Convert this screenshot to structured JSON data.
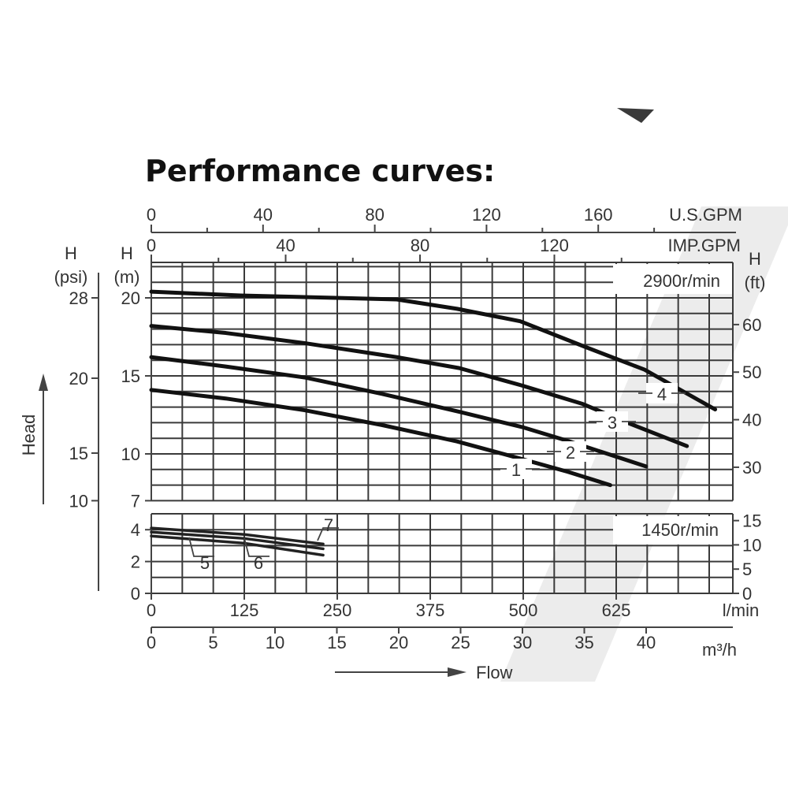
{
  "chart_data": {
    "type": "line",
    "title": "Performance curves:",
    "xlabel": "Flow",
    "ylabel": "Head",
    "x_unit": "l/min",
    "x_unit_label": "l/min",
    "x_secondary_unit_label": "m³/h",
    "x_top_units": [
      "U.S.GPM",
      "IMP.GPM"
    ],
    "y_left_headers": {
      "psi": [
        "H",
        "(psi)"
      ],
      "m": [
        "H",
        "(m)"
      ]
    },
    "y_right_header": [
      "H",
      "(ft)"
    ],
    "xlim": [
      0,
      782
    ],
    "grid": true,
    "x_ticks_lmin": [
      "0",
      "125",
      "250",
      "375",
      "500",
      "625"
    ],
    "x_ticks_m3h": [
      "0",
      "5",
      "10",
      "15",
      "20",
      "25",
      "30",
      "35",
      "40"
    ],
    "x_ticks_usgpm": [
      "0",
      "40",
      "80",
      "120",
      "160"
    ],
    "x_ticks_impgpm": [
      "0",
      "40",
      "80",
      "120"
    ],
    "upper_panel": {
      "speed_label": "2900r/min",
      "ylim_m": [
        7,
        22.27
      ],
      "y_ticks_m": [
        "20",
        "15",
        "10",
        "7"
      ],
      "y_ticks_psi": [
        {
          "label": "28",
          "m": 20
        },
        {
          "label": "20",
          "m": 14.85
        },
        {
          "label": "15",
          "m": 10.05
        },
        {
          "label": "10",
          "m": 7.0
        }
      ],
      "y_ticks_ft": [
        "60",
        "50",
        "40",
        "30"
      ],
      "series": [
        {
          "name": "1",
          "points": [
            [
              0,
              14.1
            ],
            [
              100,
              13.55
            ],
            [
              206,
              12.8
            ],
            [
              310,
              11.85
            ],
            [
              411,
              10.8
            ],
            [
              496,
              9.7
            ],
            [
              560,
              8.85
            ],
            [
              617,
              8.0
            ]
          ]
        },
        {
          "name": "2",
          "points": [
            [
              0,
              16.2
            ],
            [
              100,
              15.6
            ],
            [
              206,
              14.9
            ],
            [
              310,
              13.85
            ],
            [
              414,
              12.7
            ],
            [
              500,
              11.7
            ],
            [
              562,
              10.8
            ],
            [
              665,
              9.2
            ]
          ]
        },
        {
          "name": "3",
          "points": [
            [
              0,
              18.2
            ],
            [
              100,
              17.75
            ],
            [
              206,
              17.1
            ],
            [
              330,
              16.2
            ],
            [
              414,
              15.5
            ],
            [
              497,
              14.4
            ],
            [
              580,
              13.2
            ],
            [
              640,
              12.0
            ],
            [
              720,
              10.5
            ]
          ]
        },
        {
          "name": "4",
          "points": [
            [
              0,
              20.4
            ],
            [
              120,
              20.15
            ],
            [
              248,
              20.0
            ],
            [
              330,
              19.9
            ],
            [
              411,
              19.3
            ],
            [
              496,
              18.5
            ],
            [
              581,
              16.9
            ],
            [
              663,
              15.4
            ],
            [
              758,
              12.85
            ]
          ]
        }
      ]
    },
    "lower_panel": {
      "speed_label": "1450r/min",
      "ylim_m": [
        0,
        5
      ],
      "y_ticks_m": [
        "4",
        "2",
        "0"
      ],
      "y_ticks_ft": [
        "15",
        "10",
        "5",
        "0"
      ],
      "series": [
        {
          "name": "5",
          "points": [
            [
              0,
              3.6
            ],
            [
              125,
              3.15
            ],
            [
              231,
              2.4
            ]
          ]
        },
        {
          "name": "6",
          "points": [
            [
              0,
              3.85
            ],
            [
              125,
              3.45
            ],
            [
              231,
              2.8
            ]
          ]
        },
        {
          "name": "7",
          "points": [
            [
              0,
              4.1
            ],
            [
              125,
              3.7
            ],
            [
              231,
              3.1
            ]
          ]
        }
      ]
    },
    "colors": {
      "curve": "#111111",
      "grid": "#3a3a3a",
      "text": "#333333",
      "stripe": "#ececec"
    }
  }
}
